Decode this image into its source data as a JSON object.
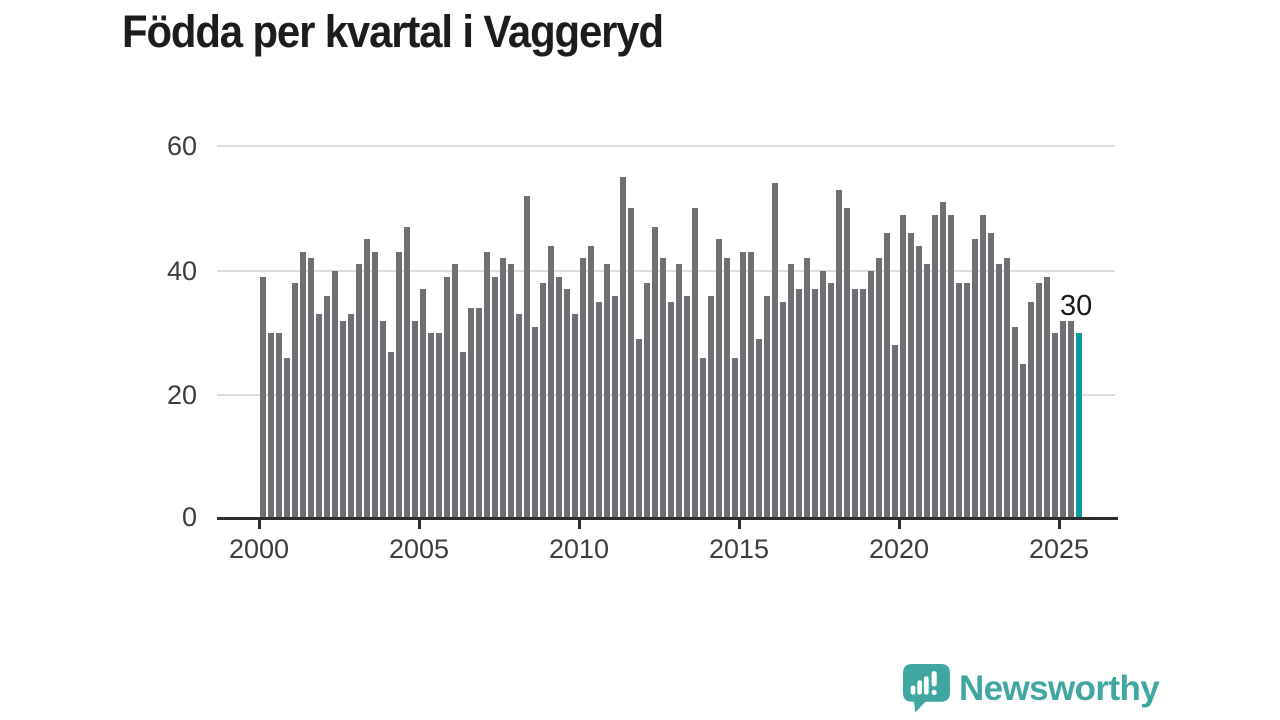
{
  "title": "Födda per kvartal i Vaggeryd",
  "annotation": {
    "value_label": "30"
  },
  "branding": {
    "name": "Newsworthy",
    "icon": "speech-bubble-bar-chart-icon"
  },
  "colors": {
    "title": "#1c1c1c",
    "bar": "#716f74",
    "highlight": "#0b9b9b",
    "gridline": "#dcdcdc",
    "axis_line": "#2d2d2d",
    "tick_label": "#3d3d3d",
    "logo": "#3fa6a1",
    "background": "#ffffff"
  },
  "chart_data": {
    "type": "bar",
    "title": "Födda per kvartal i Vaggeryd",
    "frequency": "quarterly",
    "x_start": "2000-Q1",
    "x_end": "2025-Q3",
    "x_tick_labels": [
      "2000",
      "2005",
      "2010",
      "2015",
      "2020",
      "2025"
    ],
    "y_ticks": [
      0,
      20,
      40,
      60
    ],
    "ylim": [
      0,
      60
    ],
    "grid": "horizontal",
    "legend": "none",
    "highlight_last": true,
    "last_value_label": "30",
    "values": [
      39,
      30,
      30,
      26,
      38,
      43,
      42,
      33,
      36,
      40,
      32,
      33,
      41,
      45,
      43,
      32,
      27,
      43,
      47,
      32,
      37,
      30,
      30,
      39,
      41,
      27,
      34,
      34,
      43,
      39,
      42,
      41,
      33,
      52,
      31,
      38,
      44,
      39,
      37,
      33,
      42,
      44,
      35,
      41,
      36,
      55,
      50,
      29,
      38,
      47,
      42,
      35,
      41,
      36,
      50,
      26,
      36,
      45,
      42,
      26,
      43,
      43,
      29,
      36,
      54,
      35,
      41,
      37,
      42,
      37,
      40,
      38,
      53,
      50,
      37,
      37,
      40,
      42,
      46,
      28,
      49,
      46,
      44,
      41,
      49,
      51,
      49,
      38,
      38,
      45,
      49,
      46,
      41,
      42,
      31,
      25,
      35,
      38,
      39,
      30,
      32,
      32,
      30
    ]
  }
}
